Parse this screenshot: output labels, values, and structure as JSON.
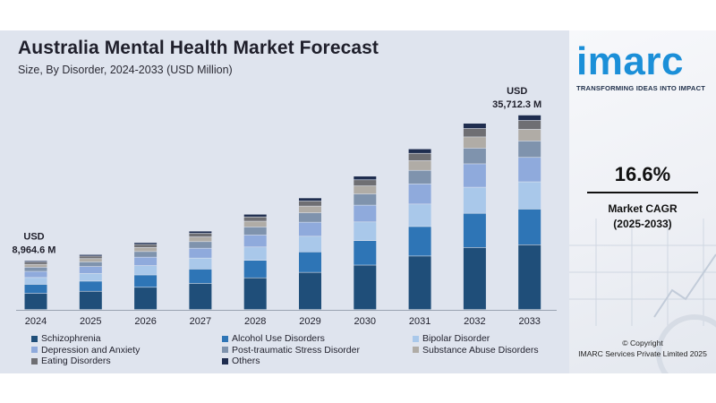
{
  "header": {
    "title": "Australia Mental Health Market Forecast",
    "subtitle": "Size, By Disorder, 2024-2033 (USD Million)"
  },
  "chart_data": {
    "type": "bar",
    "stacked": true,
    "title": "Australia Mental Health Market Forecast",
    "subtitle": "Size, By Disorder, 2024-2033 (USD Million)",
    "categories": [
      "2024",
      "2025",
      "2026",
      "2027",
      "2028",
      "2029",
      "2030",
      "2031",
      "2032",
      "2033"
    ],
    "totals": [
      8964.6,
      10100,
      12300,
      14400,
      17500,
      20500,
      24500,
      29500,
      34200,
      35712.3
    ],
    "ylim": [
      0,
      36500
    ],
    "grid": false,
    "legend_position": "bottom",
    "series": [
      {
        "name": "Schizophrenia",
        "color": "#1f4e79",
        "values": [
          2987,
          3366,
          4099,
          4799,
          5832,
          6832,
          8165,
          9831,
          11397,
          11902
        ]
      },
      {
        "name": "Alcohol Use Disorders",
        "color": "#2e75b6",
        "values": [
          1645,
          1853,
          2257,
          2642,
          3211,
          3761,
          4495,
          5413,
          6275,
          6553
        ]
      },
      {
        "name": "Bipolar Disorder",
        "color": "#a9c8ea",
        "values": [
          1255,
          1414,
          1722,
          2016,
          2450,
          2870,
          3430,
          4130,
          4788,
          5000
        ]
      },
      {
        "name": "Depression and Anxiety",
        "color": "#8faadc",
        "values": [
          1126,
          1269,
          1545,
          1809,
          2199,
          2576,
          3078,
          3706,
          4297,
          4487
        ]
      },
      {
        "name": "Post-traumatic Stress Disorder",
        "color": "#7f93ad",
        "values": [
          755,
          850,
          1035,
          1212,
          1473,
          1725,
          2062,
          2483,
          2878,
          3006
        ]
      },
      {
        "name": "Substance Abuse Disorders",
        "color": "#b0aca6",
        "values": [
          541,
          609,
          742,
          868,
          1055,
          1236,
          1477,
          1779,
          2062,
          2153
        ]
      },
      {
        "name": "Eating Disorders",
        "color": "#6f6f73",
        "values": [
          408,
          460,
          560,
          656,
          797,
          934,
          1116,
          1344,
          1558,
          1627
        ]
      },
      {
        "name": "Others",
        "color": "#1f2d4f",
        "values": [
          247,
          279,
          340,
          398,
          483,
          566,
          677,
          815,
          945,
          984
        ]
      }
    ],
    "annotations": [
      {
        "category": "2024",
        "line1": "USD",
        "line2": "8,964.6 M"
      },
      {
        "category": "2033",
        "line1": "USD",
        "line2": "35,712.3 M"
      }
    ]
  },
  "side_panel": {
    "logo": "imarc",
    "tagline": "TRANSFORMING IDEAS INTO IMPACT",
    "cagr_value": "16.6%",
    "cagr_label_line1": "Market CAGR",
    "cagr_label_line2": "(2025-2033)",
    "copyright_line1": "© Copyright",
    "copyright_line2": "IMARC Services Private Limited 2025"
  }
}
